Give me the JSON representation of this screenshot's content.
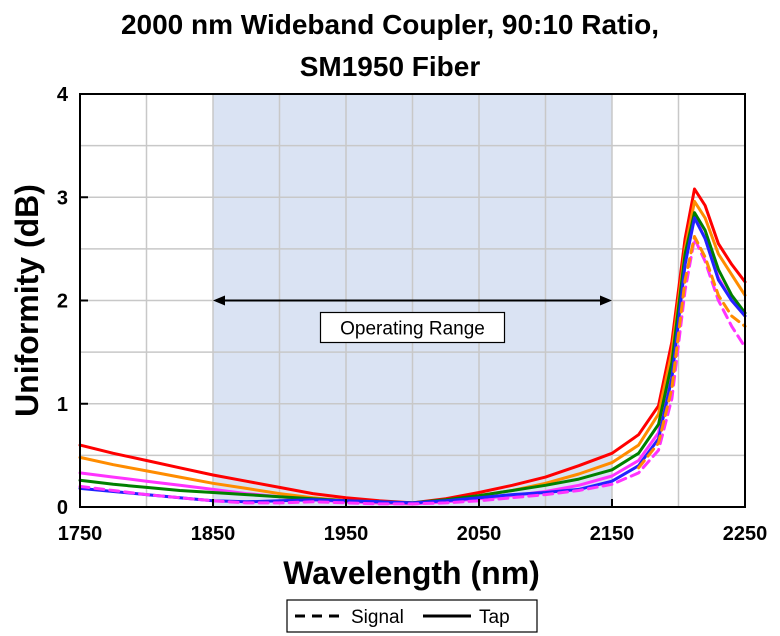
{
  "chart_data": {
    "type": "line",
    "title_line1": "2000 nm Wideband Coupler, 90:10 Ratio,",
    "title_line2": "SM1950 Fiber",
    "xlabel": "Wavelength (nm)",
    "ylabel": "Uniformity (dB)",
    "xlim": [
      1750,
      2250
    ],
    "ylim": [
      0,
      4
    ],
    "xticks": [
      1750,
      1850,
      1950,
      2050,
      2150,
      2250
    ],
    "xtick_labels": [
      "1750",
      "1850",
      "1950",
      "2050",
      "2150",
      "2250"
    ],
    "yticks": [
      0,
      1,
      2,
      3,
      4
    ],
    "ytick_labels": [
      "0",
      "1",
      "2",
      "3",
      "4"
    ],
    "grid": true,
    "shaded_region": [
      1850,
      2150
    ],
    "shaded_color": "#dae3f3",
    "annotation": {
      "text": "Operating Range",
      "x_start": 1850,
      "x_end": 2150,
      "y": 2.0
    },
    "legend": {
      "position": "bottom",
      "entries": [
        {
          "label": "Signal",
          "style": "dashed"
        },
        {
          "label": "Tap",
          "style": "solid"
        }
      ]
    },
    "series": [
      {
        "color": "#ff0000",
        "style": "solid",
        "points": [
          [
            1750,
            0.6
          ],
          [
            1775,
            0.52
          ],
          [
            1800,
            0.45
          ],
          [
            1825,
            0.38
          ],
          [
            1850,
            0.31
          ],
          [
            1875,
            0.25
          ],
          [
            1900,
            0.19
          ],
          [
            1925,
            0.13
          ],
          [
            1950,
            0.09
          ],
          [
            1975,
            0.06
          ],
          [
            2000,
            0.04
          ],
          [
            2025,
            0.08
          ],
          [
            2050,
            0.14
          ],
          [
            2075,
            0.21
          ],
          [
            2100,
            0.29
          ],
          [
            2125,
            0.4
          ],
          [
            2150,
            0.52
          ],
          [
            2170,
            0.7
          ],
          [
            2185,
            0.98
          ],
          [
            2195,
            1.6
          ],
          [
            2205,
            2.6
          ],
          [
            2212,
            3.08
          ],
          [
            2220,
            2.92
          ],
          [
            2230,
            2.55
          ],
          [
            2240,
            2.35
          ],
          [
            2250,
            2.18
          ]
        ]
      },
      {
        "color": "#ff8c00",
        "style": "solid",
        "points": [
          [
            1750,
            0.48
          ],
          [
            1775,
            0.41
          ],
          [
            1800,
            0.35
          ],
          [
            1825,
            0.29
          ],
          [
            1850,
            0.23
          ],
          [
            1875,
            0.18
          ],
          [
            1900,
            0.13
          ],
          [
            1925,
            0.09
          ],
          [
            1950,
            0.06
          ],
          [
            1975,
            0.04
          ],
          [
            2000,
            0.03
          ],
          [
            2025,
            0.06
          ],
          [
            2050,
            0.11
          ],
          [
            2075,
            0.16
          ],
          [
            2100,
            0.23
          ],
          [
            2125,
            0.32
          ],
          [
            2150,
            0.43
          ],
          [
            2170,
            0.6
          ],
          [
            2185,
            0.9
          ],
          [
            2195,
            1.5
          ],
          [
            2205,
            2.5
          ],
          [
            2212,
            2.96
          ],
          [
            2220,
            2.8
          ],
          [
            2230,
            2.45
          ],
          [
            2240,
            2.25
          ],
          [
            2250,
            2.05
          ]
        ]
      },
      {
        "color": "#ff33ff",
        "style": "solid",
        "points": [
          [
            1750,
            0.33
          ],
          [
            1775,
            0.29
          ],
          [
            1800,
            0.25
          ],
          [
            1825,
            0.21
          ],
          [
            1850,
            0.17
          ],
          [
            1875,
            0.13
          ],
          [
            1900,
            0.1
          ],
          [
            1925,
            0.07
          ],
          [
            1950,
            0.05
          ],
          [
            1975,
            0.04
          ],
          [
            2000,
            0.03
          ],
          [
            2025,
            0.05
          ],
          [
            2050,
            0.08
          ],
          [
            2075,
            0.11
          ],
          [
            2100,
            0.15
          ],
          [
            2125,
            0.21
          ],
          [
            2150,
            0.3
          ],
          [
            2170,
            0.45
          ],
          [
            2185,
            0.72
          ],
          [
            2195,
            1.3
          ],
          [
            2205,
            2.4
          ],
          [
            2212,
            2.82
          ],
          [
            2220,
            2.6
          ],
          [
            2230,
            2.22
          ],
          [
            2240,
            2.0
          ],
          [
            2250,
            1.85
          ]
        ]
      },
      {
        "color": "#008000",
        "style": "solid",
        "points": [
          [
            1750,
            0.26
          ],
          [
            1775,
            0.22
          ],
          [
            1800,
            0.19
          ],
          [
            1825,
            0.16
          ],
          [
            1850,
            0.14
          ],
          [
            1875,
            0.12
          ],
          [
            1900,
            0.1
          ],
          [
            1925,
            0.08
          ],
          [
            1950,
            0.06
          ],
          [
            1975,
            0.05
          ],
          [
            2000,
            0.04
          ],
          [
            2025,
            0.07
          ],
          [
            2050,
            0.11
          ],
          [
            2075,
            0.16
          ],
          [
            2100,
            0.21
          ],
          [
            2125,
            0.27
          ],
          [
            2150,
            0.36
          ],
          [
            2170,
            0.52
          ],
          [
            2185,
            0.8
          ],
          [
            2195,
            1.4
          ],
          [
            2205,
            2.45
          ],
          [
            2212,
            2.85
          ],
          [
            2220,
            2.68
          ],
          [
            2230,
            2.3
          ],
          [
            2240,
            2.05
          ],
          [
            2250,
            1.88
          ]
        ]
      },
      {
        "color": "#2222ff",
        "style": "solid",
        "points": [
          [
            1750,
            0.18
          ],
          [
            1775,
            0.15
          ],
          [
            1800,
            0.12
          ],
          [
            1825,
            0.09
          ],
          [
            1850,
            0.06
          ],
          [
            1875,
            0.05
          ],
          [
            1900,
            0.06
          ],
          [
            1925,
            0.07
          ],
          [
            1950,
            0.06
          ],
          [
            1975,
            0.05
          ],
          [
            2000,
            0.04
          ],
          [
            2025,
            0.06
          ],
          [
            2050,
            0.09
          ],
          [
            2075,
            0.12
          ],
          [
            2100,
            0.14
          ],
          [
            2125,
            0.17
          ],
          [
            2150,
            0.25
          ],
          [
            2170,
            0.4
          ],
          [
            2185,
            0.66
          ],
          [
            2195,
            1.25
          ],
          [
            2205,
            2.35
          ],
          [
            2212,
            2.8
          ],
          [
            2220,
            2.6
          ],
          [
            2230,
            2.2
          ],
          [
            2240,
            2.0
          ],
          [
            2250,
            1.85
          ]
        ]
      },
      {
        "color": "#ff33ff",
        "style": "dashed",
        "points": [
          [
            1750,
            0.2
          ],
          [
            1775,
            0.16
          ],
          [
            1800,
            0.12
          ],
          [
            1825,
            0.09
          ],
          [
            1850,
            0.06
          ],
          [
            1875,
            0.04
          ],
          [
            1900,
            0.04
          ],
          [
            1925,
            0.05
          ],
          [
            1950,
            0.04
          ],
          [
            1975,
            0.03
          ],
          [
            2000,
            0.03
          ],
          [
            2025,
            0.04
          ],
          [
            2050,
            0.06
          ],
          [
            2075,
            0.09
          ],
          [
            2100,
            0.12
          ],
          [
            2125,
            0.16
          ],
          [
            2150,
            0.22
          ],
          [
            2170,
            0.33
          ],
          [
            2185,
            0.55
          ],
          [
            2195,
            1.05
          ],
          [
            2205,
            2.1
          ],
          [
            2212,
            2.6
          ],
          [
            2220,
            2.38
          ],
          [
            2230,
            2.0
          ],
          [
            2240,
            1.75
          ],
          [
            2250,
            1.55
          ]
        ]
      },
      {
        "color": "#ff8c00",
        "style": "dashed",
        "points": [
          [
            2170,
            0.38
          ],
          [
            2185,
            0.62
          ],
          [
            2195,
            1.15
          ],
          [
            2205,
            2.2
          ],
          [
            2212,
            2.62
          ],
          [
            2220,
            2.42
          ],
          [
            2230,
            2.05
          ],
          [
            2240,
            1.85
          ],
          [
            2250,
            1.75
          ]
        ]
      }
    ]
  }
}
